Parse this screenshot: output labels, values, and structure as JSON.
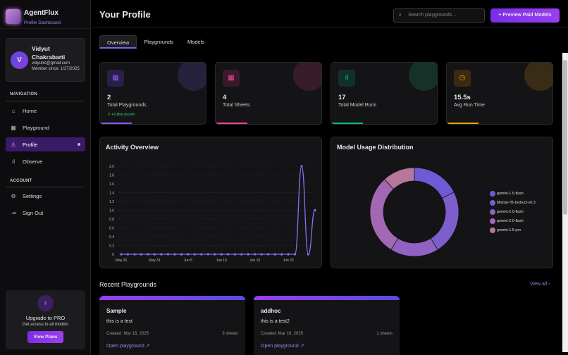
{
  "app": {
    "name": "AgentFlux",
    "subtitle": "Profile Dashboard"
  },
  "user": {
    "initial": "V",
    "name": "Vidyut Chakrabarti",
    "email": "vidyutrc@gmail.com",
    "member_since": "Member since: 1/27/2025"
  },
  "sidebar": {
    "nav_heading": "NAVIGATION",
    "nav": [
      {
        "label": "Home",
        "icon": "home-icon"
      },
      {
        "label": "Playground",
        "icon": "grid-icon"
      },
      {
        "label": "Profile",
        "icon": "user-icon",
        "active": true
      },
      {
        "label": "Observe",
        "icon": "bar-chart-icon"
      }
    ],
    "account_heading": "ACCOUNT",
    "account": [
      {
        "label": "Settings",
        "icon": "gear-icon"
      },
      {
        "label": "Sign Out",
        "icon": "sign-out-icon"
      }
    ],
    "upgrade": {
      "title": "Upgrade to PRO",
      "subtitle": "Get access to all models",
      "button": "View Plans"
    }
  },
  "header": {
    "title": "Your Profile",
    "search_placeholder": "Search playgrounds...",
    "cta": "Preview Paid Models"
  },
  "tabs": [
    {
      "label": "Overview",
      "active": true
    },
    {
      "label": "Playgrounds"
    },
    {
      "label": "Models"
    }
  ],
  "stats": [
    {
      "value": "2",
      "label": "Total Playgrounds",
      "trend": "↗ +0 this month",
      "color": "#8b5cf6",
      "icon": "grid-icon"
    },
    {
      "value": "4",
      "label": "Total Sheets",
      "color": "#ec4899",
      "icon": "table-icon"
    },
    {
      "value": "17",
      "label": "Total Model Runs",
      "color": "#10b981",
      "icon": "bar-chart-icon"
    },
    {
      "value": "15.5s",
      "label": "Avg Run Time",
      "color": "#f59e0b",
      "icon": "clock-icon"
    }
  ],
  "chart_data": [
    {
      "type": "line",
      "title": "Activity Overview",
      "x": [
        "May 26",
        "May 27",
        "May 28",
        "May 29",
        "May 30",
        "May 31",
        "Jun 1",
        "Jun 2",
        "Jun 3",
        "Jun 4",
        "Jun 5",
        "Jun 6",
        "Jun 7",
        "Jun 8",
        "Jun 9",
        "Jun 10",
        "Jun 11",
        "Jun 12",
        "Jun 13",
        "Jun 14",
        "Jun 15",
        "Jun 16",
        "Jun 17",
        "Jun 18",
        "Jun 19",
        "Jun 20",
        "Jun 21",
        "Jun 22",
        "Jun 23",
        "Jun 24"
      ],
      "values": [
        0,
        0,
        0,
        0,
        0,
        0,
        0,
        0,
        0,
        0,
        0,
        0,
        0,
        0,
        0,
        0,
        0,
        0,
        0,
        0,
        0,
        0,
        0,
        0,
        0,
        0,
        0,
        2,
        0,
        1
      ],
      "xticks": [
        "May 26",
        "May 31",
        "Jun 5",
        "Jun 10",
        "Jun 15",
        "Jun 20"
      ],
      "yticks": [
        "0",
        "0.2",
        "0.4",
        "0.6",
        "0.8",
        "1.0",
        "1.2",
        "1.4",
        "1.6",
        "1.8",
        "2.0"
      ],
      "ylim": [
        0,
        2
      ],
      "grid": true,
      "color": "#8b6cf0"
    },
    {
      "type": "pie",
      "title": "Model Usage Distribution",
      "donut": true,
      "legend_position": "right",
      "slices": [
        {
          "label": "gemini-1.5-flash",
          "value": 3,
          "color": "#6d5bd6"
        },
        {
          "label": "Mistral-7B-Instruct-v0.3",
          "value": 4,
          "color": "#7e5dcc"
        },
        {
          "label": "gemini-2.0-flash",
          "value": 3,
          "color": "#9062c4"
        },
        {
          "label": "gemini-2.0-flash",
          "value": 5,
          "color": "#a368b4"
        },
        {
          "label": "gemini-1.5-pro",
          "value": 2,
          "color": "#b5779c"
        }
      ]
    }
  ],
  "recent": {
    "title": "Recent Playgrounds",
    "view_all": "View all ›",
    "items": [
      {
        "name": "Sample",
        "desc": "this is a test",
        "created": "Created: Mar 16, 2025",
        "sheets": "3 sheets",
        "open": "Open playground ↗"
      },
      {
        "name": "addhoc",
        "desc": "this is a test2",
        "created": "Created: Mar 16, 2025",
        "sheets": "1 sheets",
        "open": "Open playground ↗"
      }
    ]
  }
}
